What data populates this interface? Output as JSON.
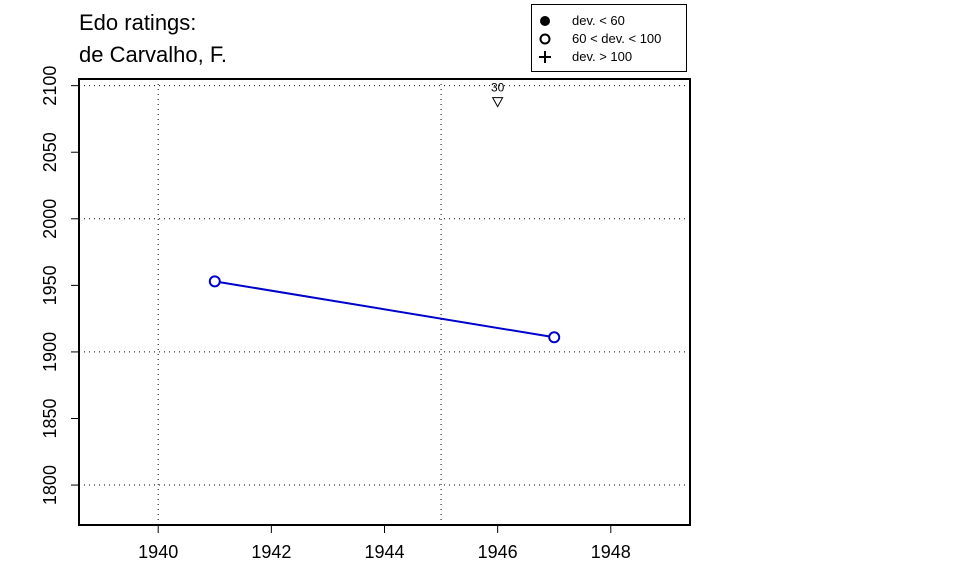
{
  "title": {
    "line1": "Edo ratings:",
    "line2": "de Carvalho, F."
  },
  "legend": {
    "items": [
      {
        "symbol": "filled-circle",
        "label": "dev. < 60"
      },
      {
        "symbol": "open-circle",
        "label": "60 < dev. < 100"
      },
      {
        "symbol": "plus",
        "label": "dev. > 100"
      }
    ]
  },
  "chart_data": {
    "type": "line",
    "xlabel": "",
    "ylabel": "",
    "xlim": [
      1938.6,
      1949.4
    ],
    "ylim": [
      1770,
      2105
    ],
    "x_ticks": [
      1940,
      1942,
      1944,
      1946,
      1948
    ],
    "y_ticks": [
      1800,
      1850,
      1900,
      1950,
      2000,
      2050,
      2100
    ],
    "x_grid": [
      1940,
      1945
    ],
    "y_grid": [
      1800,
      1900,
      2000,
      2100
    ],
    "grid": true,
    "legend_position": "top-right, outside plot",
    "series": [
      {
        "points": [
          {
            "x": 1941,
            "y": 1953,
            "deviation_class": "60 < dev. < 100"
          },
          {
            "x": 1947,
            "y": 1911,
            "deviation_class": "60 < dev. < 100"
          }
        ],
        "color": "#0000cc"
      }
    ],
    "annotations": [
      {
        "x": 1946,
        "y": 2088,
        "marker": "down-triangle",
        "label": "30"
      }
    ]
  }
}
